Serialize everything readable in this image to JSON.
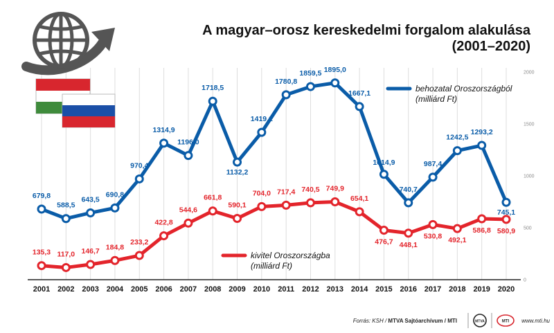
{
  "title_line1": "A magyar–orosz kereskedelmi forgalom alakulása",
  "title_line2": "(2001–2020)",
  "footer": {
    "prefix": "Forrás: KSH / ",
    "bold": "MTVA Sajtóarchívum / MTI",
    "url": "www.mti.hu",
    "logo1": "MTVA",
    "logo2": "MTI"
  },
  "colors": {
    "import": "#0a5ca8",
    "export": "#e3242b",
    "background": "#ffffff",
    "grid": "#dddddd",
    "globe": "#555555",
    "arrow": "#555555"
  },
  "icons": [
    "globe-icon",
    "growth-arrow-icon",
    "hungary-flag-icon",
    "russia-flag-icon"
  ],
  "chart_data": {
    "type": "line",
    "x": [
      2001,
      2002,
      2003,
      2004,
      2005,
      2006,
      2007,
      2008,
      2009,
      2010,
      2011,
      2012,
      2013,
      2014,
      2015,
      2016,
      2017,
      2018,
      2019,
      2020
    ],
    "x_tick_labels": [
      "2001",
      "2002",
      "2003",
      "2004",
      "2005",
      "2006",
      "2007",
      "2008",
      "2009",
      "2010",
      "2011",
      "2012",
      "2013",
      "2014",
      "2015",
      "2016",
      "2017",
      "2018",
      "2019",
      "2020"
    ],
    "ylim": [
      0,
      2000
    ],
    "y_ticks": [
      0,
      500,
      1000,
      1500,
      2000
    ],
    "grid": "vertical",
    "series": [
      {
        "key": "import",
        "name_line1": "behozatal Oroszországból",
        "name_line2": "(milliárd Ft)",
        "values": [
          679.8,
          588.5,
          643.5,
          690.8,
          970.4,
          1314.9,
          1196.0,
          1718.5,
          1132.2,
          1419.1,
          1780.8,
          1859.5,
          1895.0,
          1667.1,
          1014.9,
          740.7,
          987.4,
          1242.5,
          1293.2,
          745.1
        ],
        "labels": [
          "679,8",
          "588,5",
          "643,5",
          "690,8",
          "970,4",
          "1314,9",
          "1196,0",
          "1718,5",
          "1132,2",
          "1419,1",
          "1780,8",
          "1859,5",
          "1895,0",
          "1667,1",
          "1014,9",
          "740,7",
          "987,4",
          "1242,5",
          "1293,2",
          "745,1"
        ]
      },
      {
        "key": "export",
        "name_line1": "kivitel Oroszországba",
        "name_line2": "(milliárd Ft)",
        "values": [
          135.3,
          117.0,
          146.7,
          184.8,
          233.2,
          422.8,
          544.6,
          661.8,
          590.1,
          704.0,
          717.4,
          740.5,
          749.9,
          654.1,
          476.7,
          448.1,
          530.8,
          492.1,
          586.8,
          580.9
        ],
        "labels": [
          "135,3",
          "117,0",
          "146,7",
          "184,8",
          "233,2",
          "422,8",
          "544,6",
          "661,8",
          "590,1",
          "704,0",
          "717,4",
          "740,5",
          "749,9",
          "654,1",
          "476,7",
          "448,1",
          "530,8",
          "492,1",
          "586,8",
          "580,9"
        ]
      }
    ],
    "legend": [
      {
        "series": "import",
        "placement": "top-right"
      },
      {
        "series": "export",
        "placement": "bottom-center"
      }
    ]
  }
}
